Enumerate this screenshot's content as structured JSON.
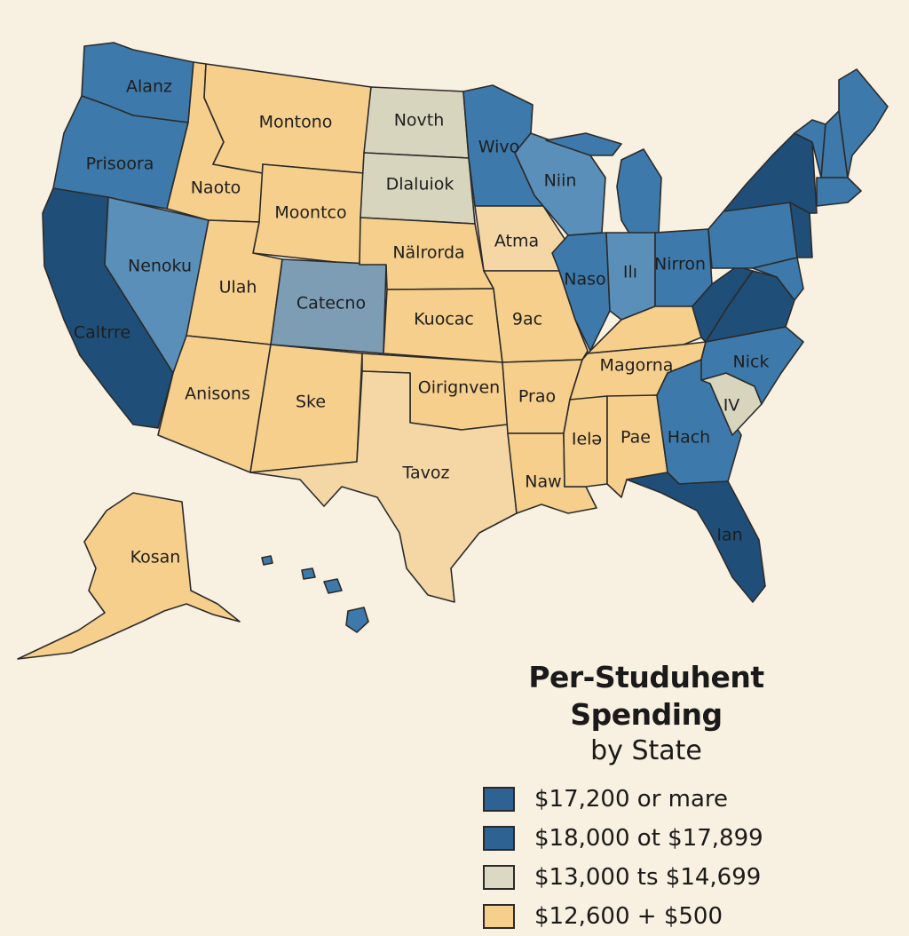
{
  "map": {
    "title": "Per-Studuhent Spending",
    "subtitle": "by State",
    "colors": {
      "tier1": "#1f4f78",
      "tier2": "#3d7aab",
      "tier3": "#d8d5bf",
      "tier4": "#f7cf8c",
      "slate": "#7d9db4",
      "light_blue": "#5a8fba",
      "light_orange": "#f5d7a6"
    },
    "states": [
      {
        "id": "washington",
        "label": "Alanz",
        "fill": "tier2"
      },
      {
        "id": "oregon",
        "label": "Prisoora",
        "fill": "tier2"
      },
      {
        "id": "california",
        "label": "Caltrre",
        "fill": "tier1"
      },
      {
        "id": "nevada",
        "label": "Nenoku",
        "fill": "light_blue"
      },
      {
        "id": "idaho",
        "label": "Naoto",
        "fill": "tier4"
      },
      {
        "id": "montana",
        "label": "Montono",
        "fill": "tier4"
      },
      {
        "id": "wyoming",
        "label": "Moontco",
        "fill": "tier4"
      },
      {
        "id": "utah",
        "label": "Ulah",
        "fill": "tier4"
      },
      {
        "id": "colorado",
        "label": "Catecno",
        "fill": "slate"
      },
      {
        "id": "arizona",
        "label": "Anisons",
        "fill": "tier4"
      },
      {
        "id": "new-mexico",
        "label": "Ske",
        "fill": "tier4"
      },
      {
        "id": "north-dakota",
        "label": "Novth",
        "fill": "tier3"
      },
      {
        "id": "south-dakota",
        "label": "Dlaluiok",
        "fill": "tier3"
      },
      {
        "id": "nebraska",
        "label": "Nälrorda",
        "fill": "tier4"
      },
      {
        "id": "kansas",
        "label": "Kuocac",
        "fill": "tier4"
      },
      {
        "id": "oklahoma",
        "label": "Oirignven",
        "fill": "tier4"
      },
      {
        "id": "texas",
        "label": "Tavoz",
        "fill": "light_orange"
      },
      {
        "id": "minnesota",
        "label": "Wivo",
        "fill": "tier2"
      },
      {
        "id": "iowa",
        "label": "Atma",
        "fill": "light_orange"
      },
      {
        "id": "missouri",
        "label": "9ac",
        "fill": "tier4"
      },
      {
        "id": "arkansas",
        "label": "Prao",
        "fill": "tier4"
      },
      {
        "id": "louisiana",
        "label": "Naw",
        "fill": "tier4"
      },
      {
        "id": "wisconsin",
        "label": "Niin",
        "fill": "light_blue"
      },
      {
        "id": "illinois",
        "label": "Naso",
        "fill": "tier2"
      },
      {
        "id": "michigan",
        "label": "",
        "fill": "tier2"
      },
      {
        "id": "indiana",
        "label": "Ilı",
        "fill": "light_blue"
      },
      {
        "id": "ohio",
        "label": "Nirron",
        "fill": "tier2"
      },
      {
        "id": "kentucky",
        "label": "",
        "fill": "tier4"
      },
      {
        "id": "tennessee",
        "label": "Magorna",
        "fill": "tier4"
      },
      {
        "id": "mississippi",
        "label": "Ielə",
        "fill": "tier4"
      },
      {
        "id": "alabama",
        "label": "Pae",
        "fill": "tier4"
      },
      {
        "id": "georgia",
        "label": "Hach",
        "fill": "tier2"
      },
      {
        "id": "florida",
        "label": "Ian",
        "fill": "tier1"
      },
      {
        "id": "south-carolina",
        "label": "IV",
        "fill": "tier3"
      },
      {
        "id": "north-carolina",
        "label": "Nick",
        "fill": "tier2"
      },
      {
        "id": "virginia",
        "label": "",
        "fill": "tier1"
      },
      {
        "id": "west-virginia",
        "label": "",
        "fill": "tier1"
      },
      {
        "id": "pennsylvania",
        "label": "",
        "fill": "tier2"
      },
      {
        "id": "new-york",
        "label": "",
        "fill": "tier1"
      },
      {
        "id": "maryland",
        "label": "",
        "fill": "tier2"
      },
      {
        "id": "new-jersey",
        "label": "",
        "fill": "tier1"
      },
      {
        "id": "vermont",
        "label": "",
        "fill": "tier2"
      },
      {
        "id": "new-hampshire",
        "label": "",
        "fill": "tier2"
      },
      {
        "id": "maine",
        "label": "",
        "fill": "tier2"
      },
      {
        "id": "massachusetts",
        "label": "",
        "fill": "tier2"
      },
      {
        "id": "alaska",
        "label": "Kosan",
        "fill": "tier4"
      },
      {
        "id": "hawaii",
        "label": "",
        "fill": "tier2"
      }
    ]
  },
  "legend": {
    "items": [
      {
        "label": "$17,200 or mare",
        "color": "#2e6292"
      },
      {
        "label": "$18,000 ot $17,899",
        "color": "#2e6292"
      },
      {
        "label": "$13,000 ts $14,699",
        "color": "#dbd8c4"
      },
      {
        "label": "$12,600 + $500",
        "color": "#f7cf8c"
      }
    ]
  }
}
